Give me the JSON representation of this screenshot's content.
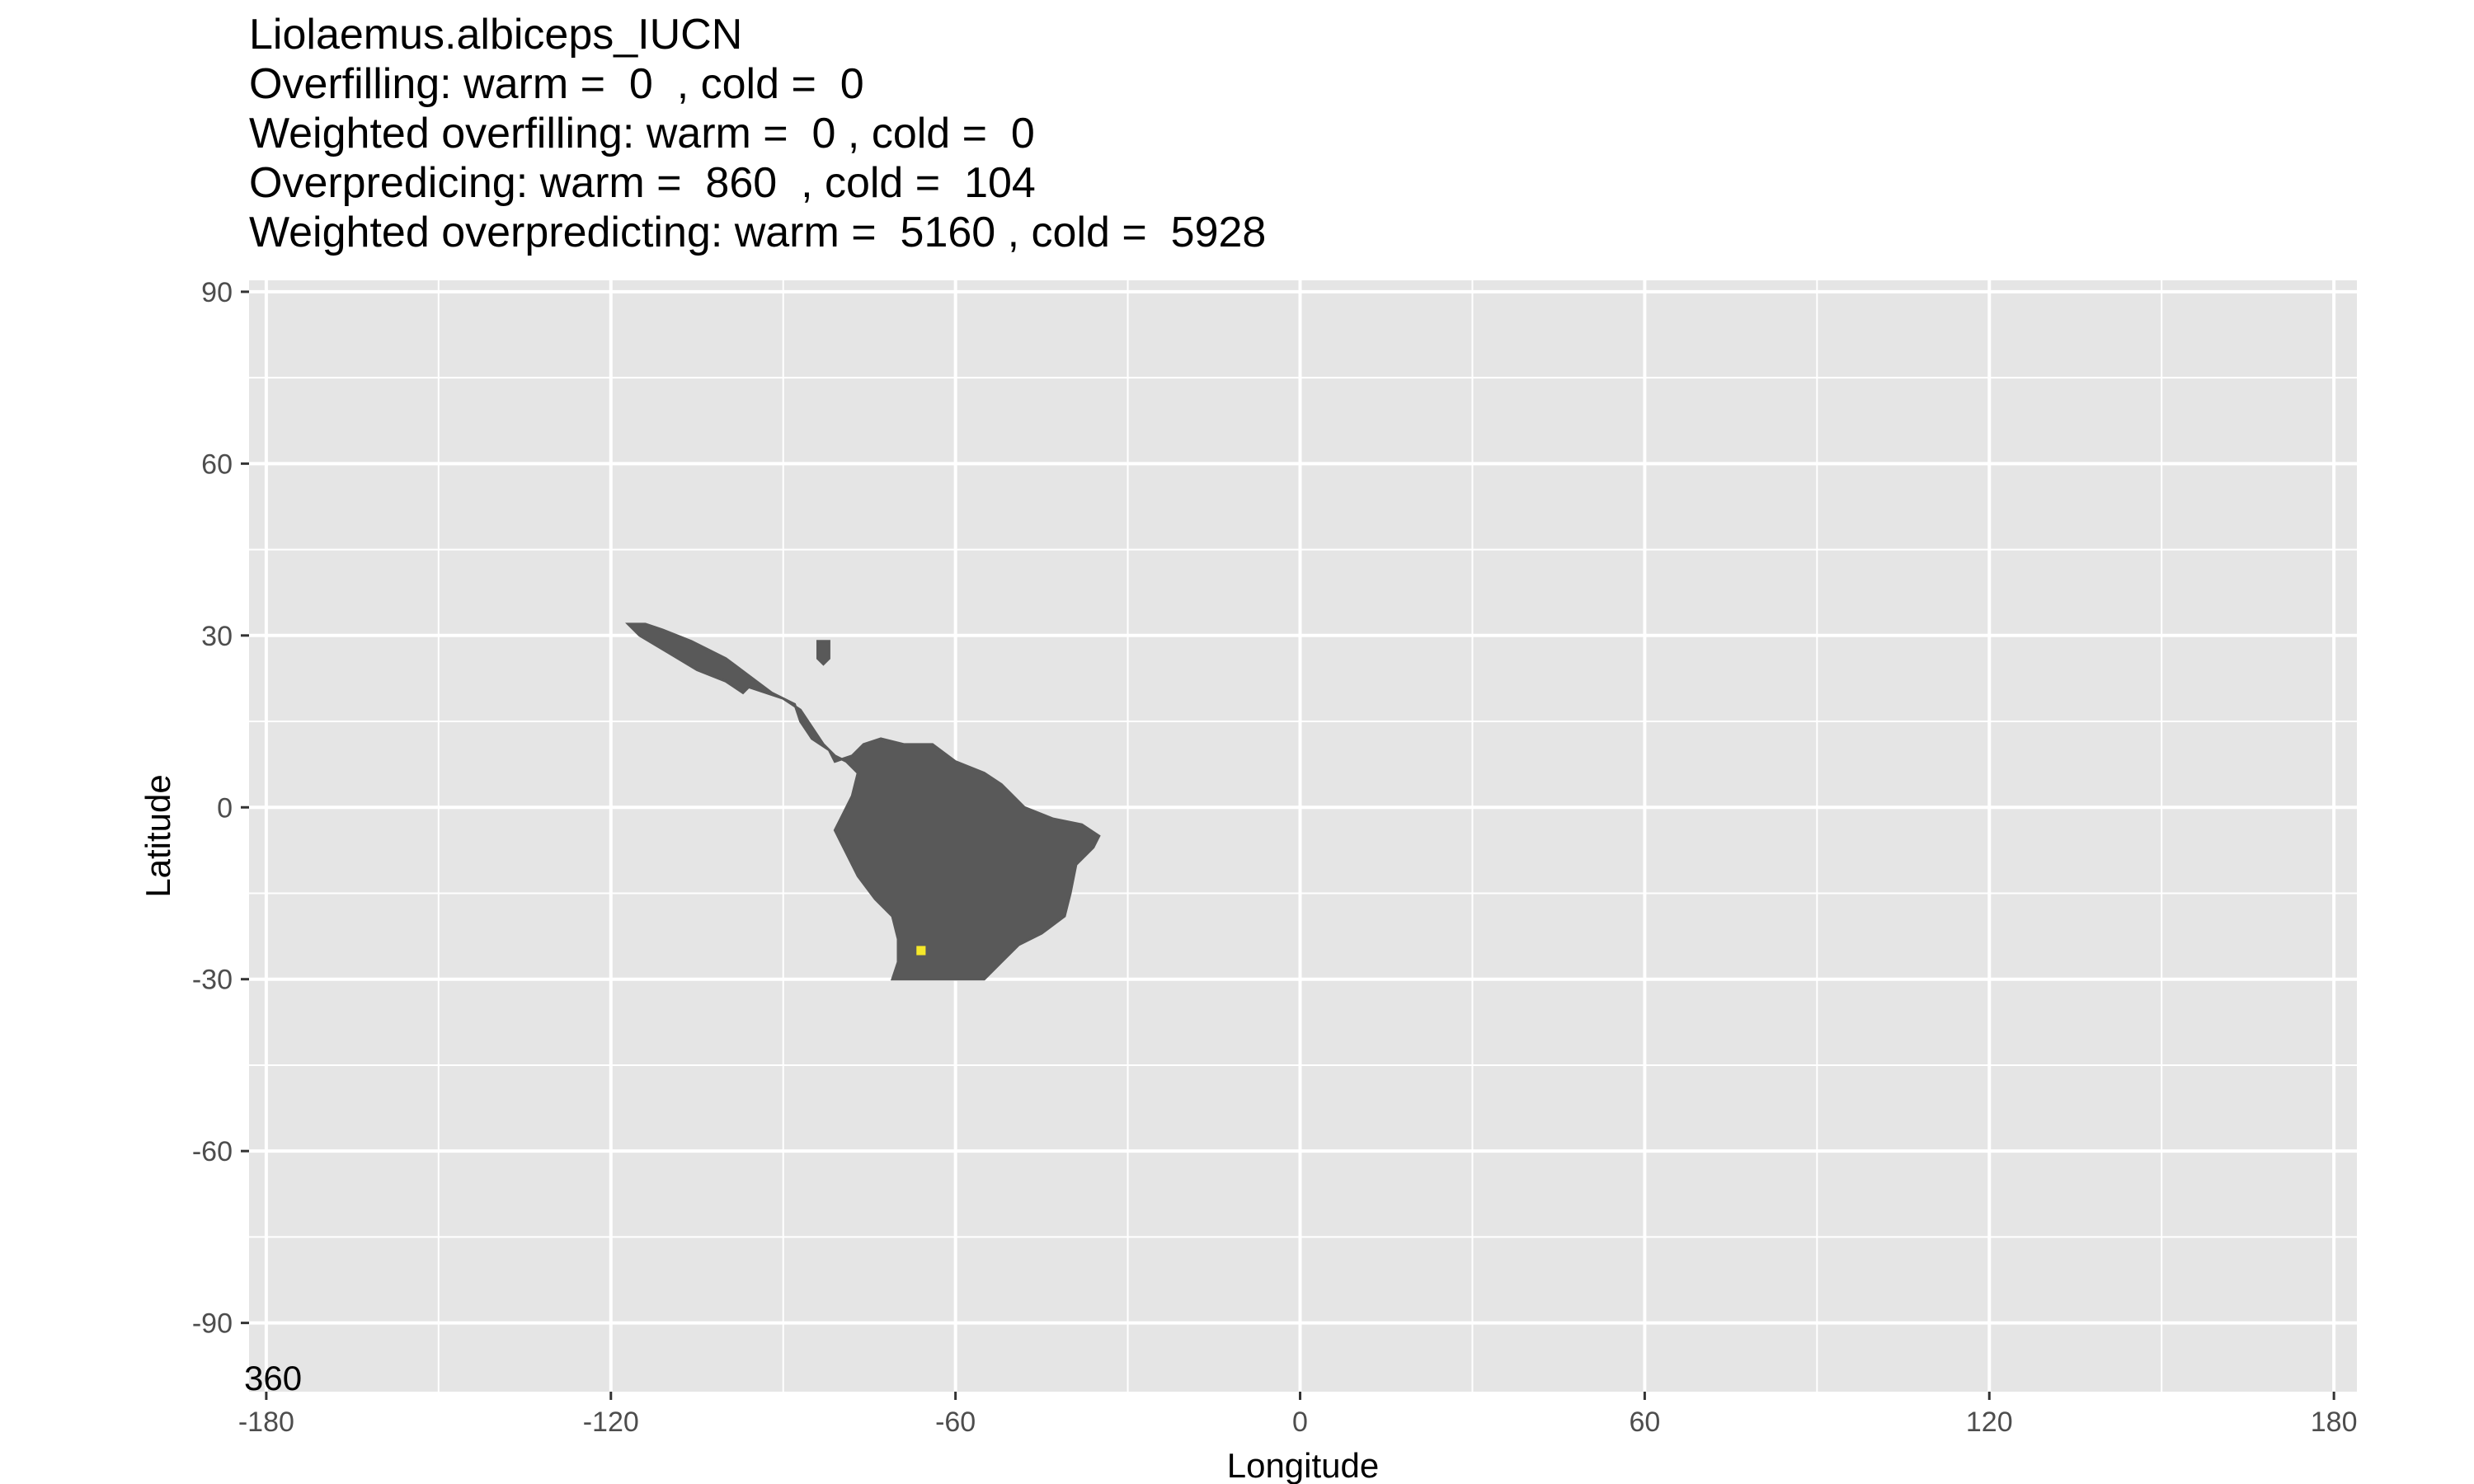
{
  "chart_data": {
    "type": "raster-map",
    "title_lines": [
      "Liolaemus.albiceps_IUCN",
      "Overfilling: warm =  0  , cold =  0",
      "Weighted overfilling: warm =  0 , cold =  0",
      "Overpredicing: warm =  860  , cold =  104",
      "Weighted overpredicting: warm =  5160 , cold =  5928"
    ],
    "xlabel": "Longitude",
    "ylabel": "Latitude",
    "xlim": [
      -183,
      184
    ],
    "ylim": [
      -102,
      92
    ],
    "x_ticks": [
      -180,
      -120,
      -60,
      0,
      60,
      120,
      180
    ],
    "x_tick_labels": [
      "-180",
      "-120",
      "-60",
      "0",
      "60",
      "120",
      "180"
    ],
    "y_ticks": [
      90,
      60,
      30,
      0,
      -30,
      -60,
      -90
    ],
    "y_tick_labels": [
      "90",
      "60",
      "30",
      "0",
      "-30",
      "-60",
      "-90"
    ],
    "x_minor": [
      -150,
      -90,
      -30,
      30,
      90,
      150
    ],
    "y_minor": [
      75,
      45,
      15,
      -15,
      -45,
      -75
    ],
    "corner_label": "360",
    "colors": {
      "panel": "#e5e5e5",
      "grid": "#ffffff",
      "range": "#595959",
      "highlight": "#f5e82a",
      "axis_text": "#4d4d4d"
    },
    "highlight_cell": {
      "lon": -66,
      "lat": -25
    },
    "range_polygons": [
      [
        [
          -117,
          32
        ],
        [
          -115,
          30
        ],
        [
          -110,
          27
        ],
        [
          -105,
          24
        ],
        [
          -100,
          22
        ],
        [
          -97,
          20
        ],
        [
          -96,
          21
        ],
        [
          -90,
          19
        ],
        [
          -87,
          17
        ],
        [
          -85,
          14
        ],
        [
          -83,
          11
        ],
        [
          -81,
          9
        ],
        [
          -79,
          8
        ],
        [
          -77,
          6
        ],
        [
          -78,
          2
        ],
        [
          -80,
          -2
        ],
        [
          -81,
          -4
        ],
        [
          -79,
          -8
        ],
        [
          -77,
          -12
        ],
        [
          -74,
          -16
        ],
        [
          -71,
          -19
        ],
        [
          -70,
          -23
        ],
        [
          -70,
          -27
        ],
        [
          -71,
          -30
        ],
        [
          -67,
          -30
        ],
        [
          -60,
          -30
        ],
        [
          -55,
          -30
        ],
        [
          -52,
          -27
        ],
        [
          -49,
          -24
        ],
        [
          -45,
          -22
        ],
        [
          -41,
          -19
        ],
        [
          -40,
          -15
        ],
        [
          -39,
          -10
        ],
        [
          -36,
          -7
        ],
        [
          -35,
          -5
        ],
        [
          -38,
          -3
        ],
        [
          -43,
          -2
        ],
        [
          -48,
          0
        ],
        [
          -50,
          2
        ],
        [
          -52,
          4
        ],
        [
          -55,
          6
        ],
        [
          -60,
          8
        ],
        [
          -64,
          11
        ],
        [
          -69,
          11
        ],
        [
          -73,
          12
        ],
        [
          -76,
          11
        ],
        [
          -78,
          9
        ],
        [
          -81,
          8
        ],
        [
          -82,
          10
        ],
        [
          -85,
          12
        ],
        [
          -87,
          15
        ],
        [
          -88,
          18
        ],
        [
          -92,
          20
        ],
        [
          -96,
          23
        ],
        [
          -100,
          26
        ],
        [
          -106,
          29
        ],
        [
          -111,
          31
        ],
        [
          -114,
          32
        ]
      ],
      [
        [
          -84,
          29
        ],
        [
          -82,
          29
        ],
        [
          -82,
          26
        ],
        [
          -83,
          25
        ],
        [
          -84,
          26
        ]
      ]
    ]
  }
}
